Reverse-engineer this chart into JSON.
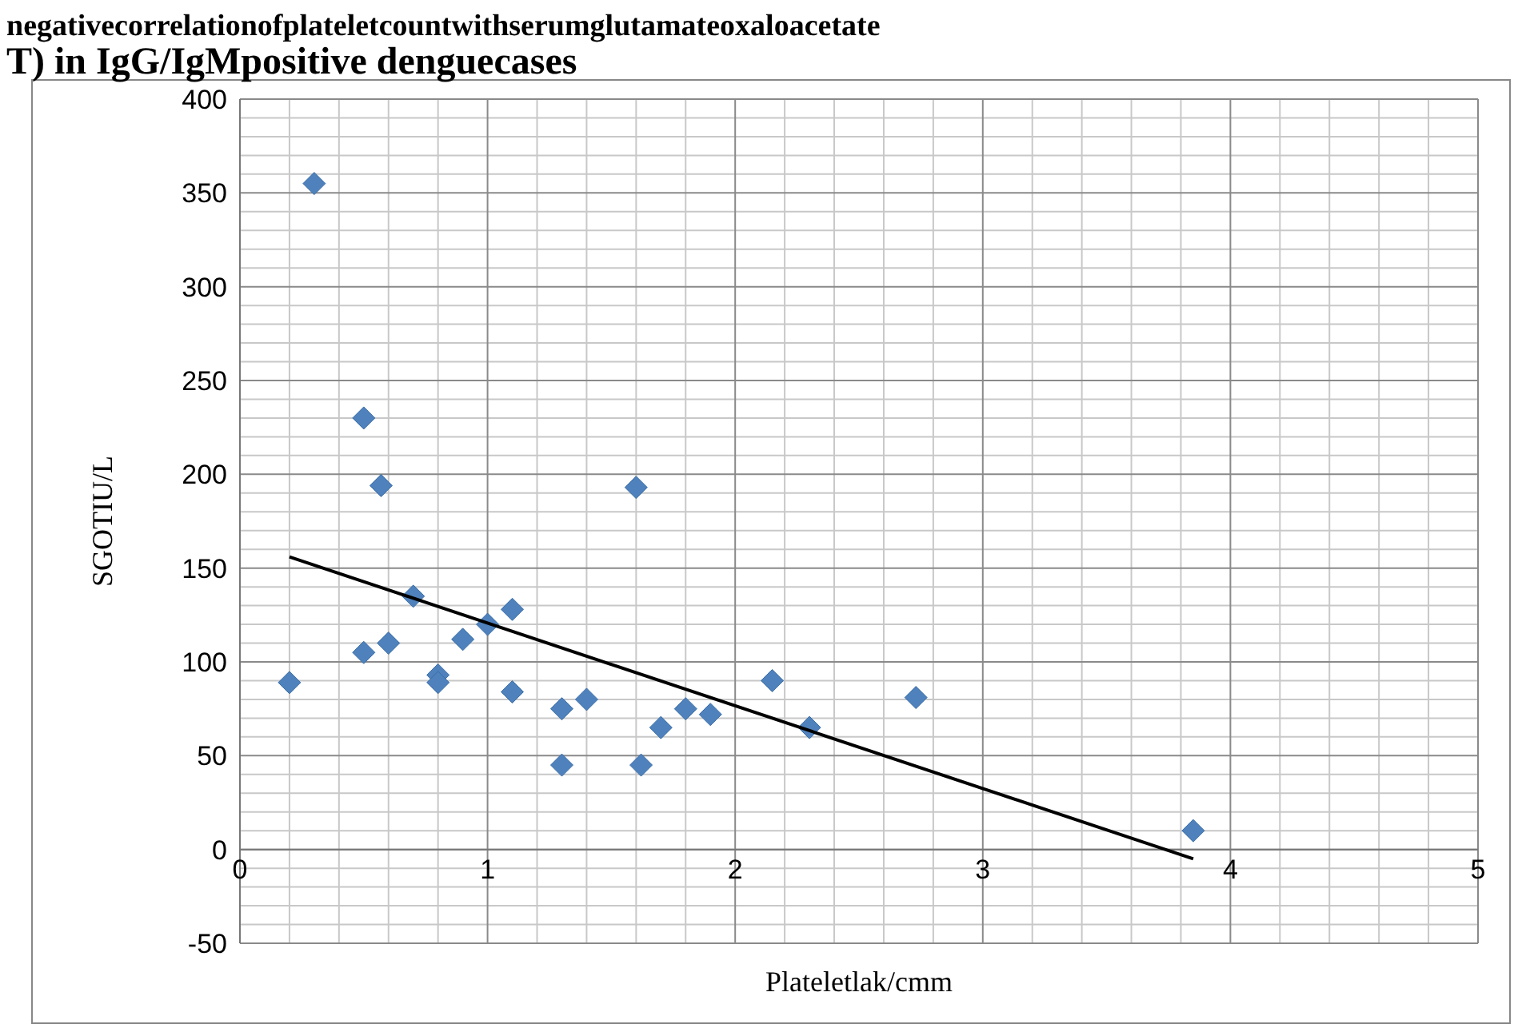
{
  "chart_data": {
    "type": "scatter",
    "title": "negativecorrelationofplateletcountwithserumglutamateoxaloacetate\nT) in IgG/IgMpositive denguecases",
    "xlabel": "Plateletlak/cmm",
    "ylabel": "SGOTIU/L",
    "series": [
      {
        "color": "#4f81bd",
        "marker": "diamond",
        "x": [
          0.2,
          0.3,
          0.5,
          0.5,
          0.57,
          0.6,
          0.7,
          0.8,
          0.8,
          0.9,
          1.0,
          1.1,
          1.1,
          1.3,
          1.3,
          1.4,
          1.6,
          1.62,
          1.7,
          1.8,
          1.9,
          2.15,
          2.3,
          2.73,
          3.85
        ],
        "values": [
          89,
          355,
          230,
          105,
          194,
          110,
          135,
          93,
          89,
          112,
          120,
          128,
          84,
          75,
          45,
          80,
          193,
          45,
          65,
          75,
          72,
          90,
          65,
          81,
          10
        ]
      },
      {
        "type": "line",
        "color": "#000000",
        "marker": "none",
        "x": [
          0.2,
          3.85
        ],
        "values": [
          156,
          -5
        ]
      }
    ],
    "xlim": [
      0,
      5
    ],
    "xticks": [
      0,
      1,
      2,
      3,
      4,
      5
    ],
    "ylim": [
      -50,
      400
    ],
    "yticks": [
      -50,
      0,
      50,
      100,
      150,
      200,
      250,
      300,
      350,
      400
    ],
    "grid": true
  }
}
